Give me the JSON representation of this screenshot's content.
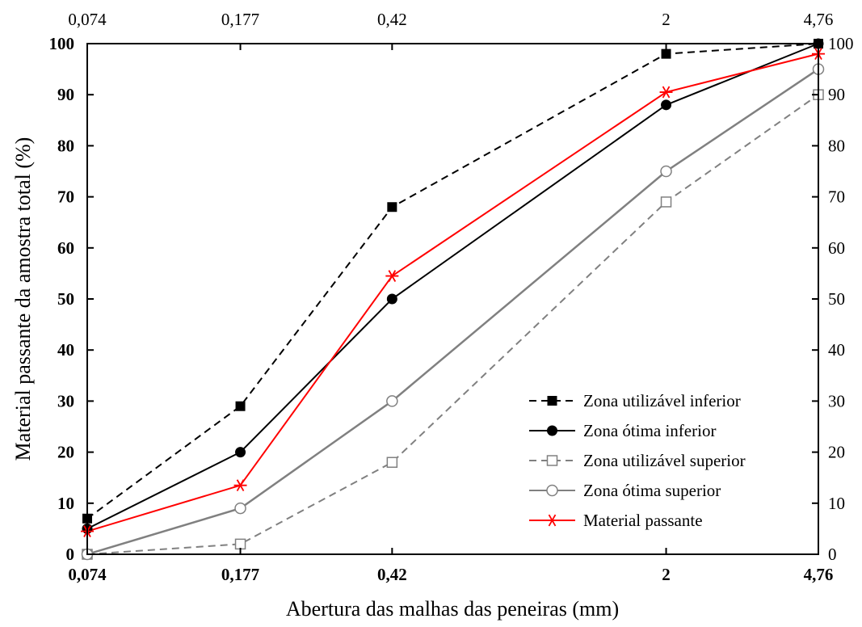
{
  "chart_data": {
    "type": "line",
    "x": [
      "0,074",
      "0,177",
      "0,42",
      "2",
      "4,76"
    ],
    "xlabel": "Abertura das malhas das peneiras (mm)",
    "ylabel": "Material passante da amostra total (%)",
    "ylim": [
      0,
      100
    ],
    "yticks": [
      "0",
      "10",
      "20",
      "30",
      "40",
      "50",
      "60",
      "70",
      "80",
      "90",
      "100"
    ],
    "x_scale": "log",
    "top_axis_ticks": [
      "0,074",
      "0,177",
      "0,42",
      "2",
      "4,76"
    ],
    "right_axis_ticks": [
      "0",
      "10",
      "20",
      "30",
      "40",
      "50",
      "60",
      "70",
      "80",
      "90",
      "100"
    ],
    "legend_position": "bottom-right",
    "grid": false,
    "series": [
      {
        "name": "Zona utilizável inferior",
        "values": [
          7,
          29,
          68,
          98,
          100
        ],
        "color": "#000000",
        "dash": "dashed",
        "marker": "filled-square"
      },
      {
        "name": "Zona ótima inferior",
        "values": [
          5,
          20,
          50,
          88,
          100
        ],
        "color": "#000000",
        "dash": "solid",
        "marker": "filled-circle"
      },
      {
        "name": "Zona utilizável superior",
        "values": [
          0,
          2,
          18,
          69,
          90
        ],
        "color": "#808080",
        "dash": "dashed",
        "marker": "open-square"
      },
      {
        "name": "Zona ótima superior",
        "values": [
          0,
          9,
          30,
          75,
          95
        ],
        "color": "#808080",
        "dash": "solid",
        "marker": "open-circle"
      },
      {
        "name": "Material passante",
        "values": [
          4.5,
          13.5,
          54.5,
          90.5,
          98
        ],
        "color": "#ff0000",
        "dash": "solid",
        "marker": "asterisk"
      }
    ]
  }
}
